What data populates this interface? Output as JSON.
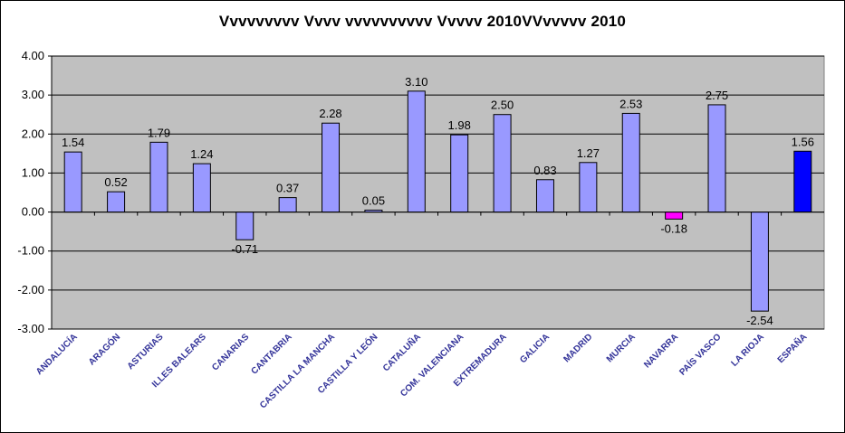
{
  "chart_data": {
    "type": "bar",
    "title": "Vvvvvvvvv Vvvv vvvvvvvvvv Vvvvv 2010VVvvvvv 2010",
    "categories": [
      "ANDALUCÍA",
      "ARAGÓN",
      "ASTURIAS",
      "ILLES BALEARS",
      "CANARIAS",
      "CANTABRIA",
      "CASTILLA LA MANCHA",
      "CASTILLA Y LEÓN",
      "CATALUÑA",
      "COM. VALENCIANA",
      "EXTREMADURA",
      "GALICIA",
      "MADRID",
      "MURCIA",
      "NAVARRA",
      "PAÍS VASCO",
      "LA RIOJA",
      "ESPAÑA"
    ],
    "values": [
      1.54,
      0.52,
      1.79,
      1.24,
      -0.71,
      0.37,
      2.28,
      0.05,
      3.1,
      1.98,
      2.5,
      0.83,
      1.27,
      2.53,
      -0.18,
      2.75,
      -2.54,
      1.56
    ],
    "data_labels": [
      "1.54",
      "0.52",
      "1.79",
      "1.24",
      "-0.71",
      "0.37",
      "2.28",
      "0.05",
      "3.10",
      "1.98",
      "2.50",
      "0.83",
      "1.27",
      "2.53",
      "-0.18",
      "2.75",
      "-2.54",
      "1.56"
    ],
    "ylim": [
      -3.0,
      4.0
    ],
    "yticks": [
      "4.00",
      "3.00",
      "2.00",
      "1.00",
      "0.00",
      "-1.00",
      "-2.00",
      "-3.00"
    ],
    "ytick_values": [
      4,
      3,
      2,
      1,
      0,
      -1,
      -2,
      -3
    ],
    "xlabel": "",
    "ylabel": "",
    "grid": true,
    "legend": "none",
    "colors": {
      "bar_default": "#9999FF",
      "bar_navarra": "#FF00FF",
      "bar_espana": "#0000FF",
      "plot_background": "#C0C0C0",
      "tick_label": "#333399"
    },
    "bar_colors": [
      "#9999FF",
      "#9999FF",
      "#9999FF",
      "#9999FF",
      "#9999FF",
      "#9999FF",
      "#9999FF",
      "#9999FF",
      "#9999FF",
      "#9999FF",
      "#9999FF",
      "#9999FF",
      "#9999FF",
      "#9999FF",
      "#FF00FF",
      "#9999FF",
      "#9999FF",
      "#0000FF"
    ]
  }
}
